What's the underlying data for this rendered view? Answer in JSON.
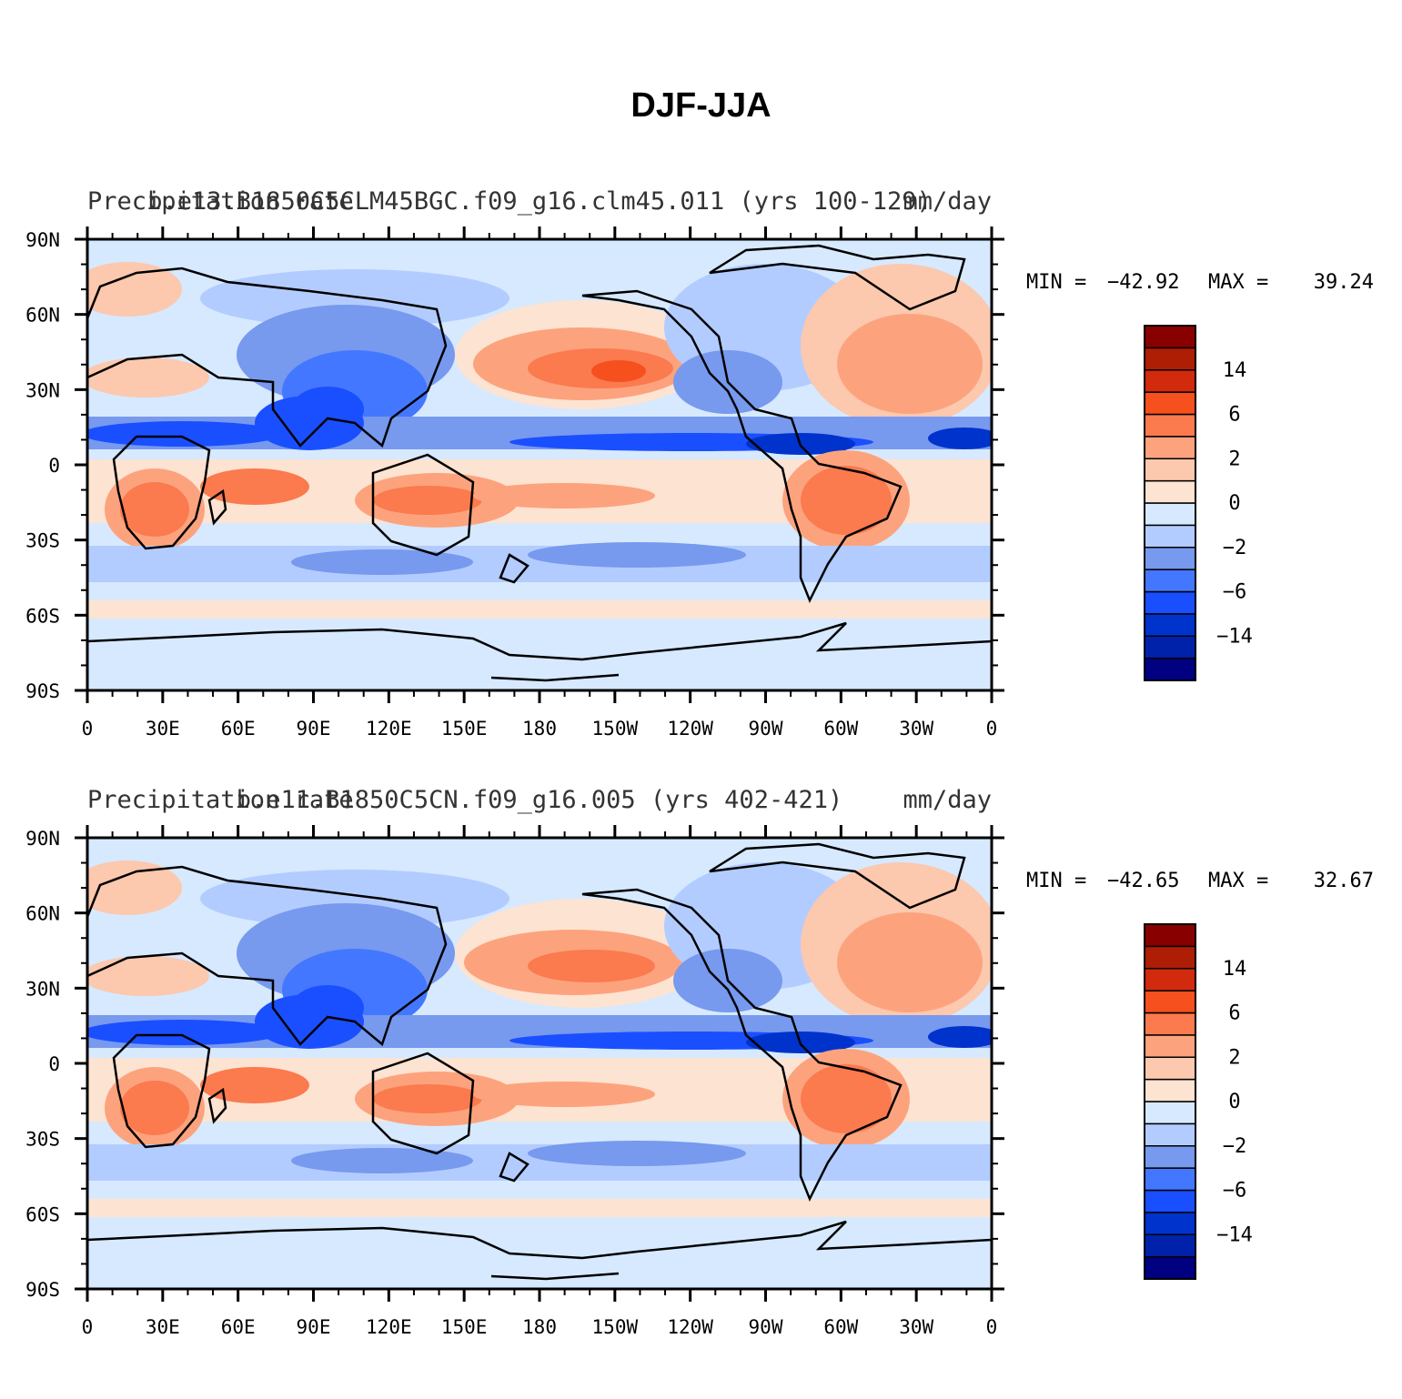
{
  "figure": {
    "title": "DJF-JJA"
  },
  "legend": {
    "colors": [
      "#000080",
      "#0022aa",
      "#0033cc",
      "#1a4fff",
      "#4477ff",
      "#7799ee",
      "#b3ccff",
      "#d6e9ff",
      "#fde3d1",
      "#fcc8ae",
      "#fca37e",
      "#fb7a4e",
      "#f5501e",
      "#d22a0c",
      "#ad1e05",
      "#880000"
    ],
    "tick_labels": [
      "−14",
      "−6",
      "−2",
      "0",
      "2",
      "6",
      "14"
    ],
    "tick_boundary_index": [
      2,
      4,
      6,
      8,
      10,
      12,
      14
    ]
  },
  "axes": {
    "lat_labels": [
      "90N",
      "60N",
      "30N",
      "0",
      "30S",
      "60S",
      "90S"
    ],
    "lon_labels": [
      "0",
      "30E",
      "60E",
      "90E",
      "120E",
      "150E",
      "180",
      "150W",
      "120W",
      "90W",
      "60W",
      "30W",
      "0"
    ]
  },
  "panels": [
    {
      "case_name": "b.e13.B1850C5CLM45BGC.f09_g16.clm45.011 (yrs 100-129)",
      "variable": "Precipitation rate",
      "units": "mm/day",
      "min_label": "MIN = ",
      "min_value": "−42.92",
      "max_label": "MAX = ",
      "max_value": "39.24"
    },
    {
      "case_name": "b.e11.B1850C5CN.f09_g16.005 (yrs 402-421)",
      "variable": "Precipitation rate",
      "units": "mm/day",
      "min_label": "MIN = ",
      "min_value": "−42.65",
      "max_label": "MAX = ",
      "max_value": "32.67"
    }
  ]
}
